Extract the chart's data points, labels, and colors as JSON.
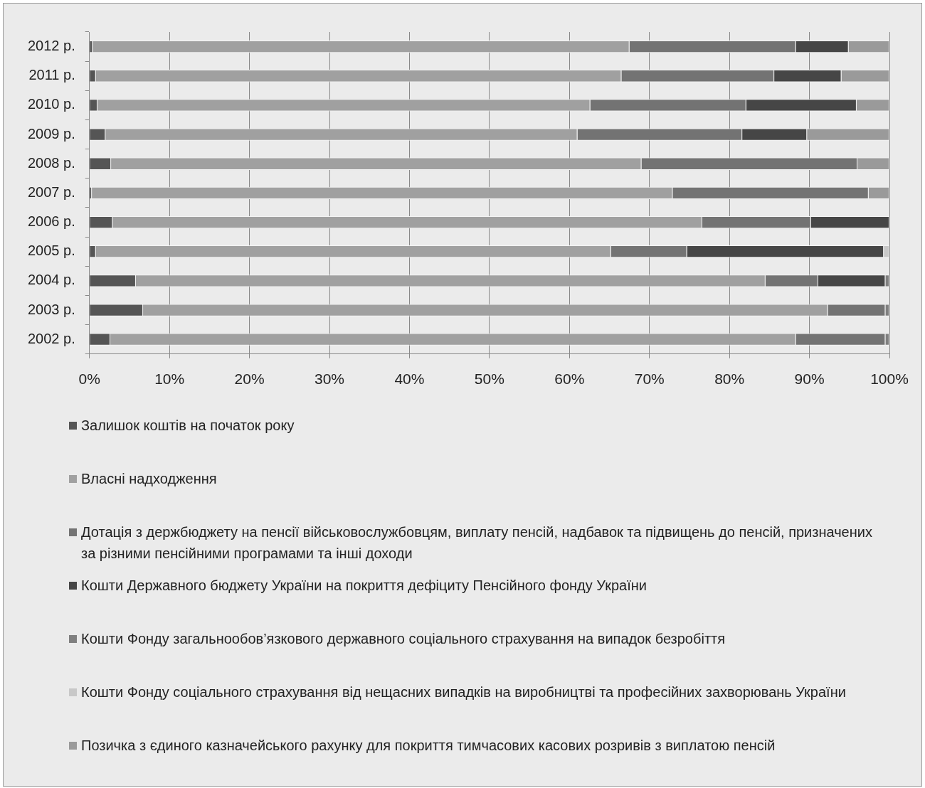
{
  "chart_data": {
    "type": "bar",
    "orientation": "horizontal",
    "stacked": true,
    "categories": [
      "2012 р.",
      "2011 р.",
      "2010 р.",
      "2009 р.",
      "2008 р.",
      "2007 р.",
      "2006 р.",
      "2005 р.",
      "2004 р.",
      "2003 р.",
      "2002 р."
    ],
    "series": [
      {
        "name": "Залишок коштів на початок року",
        "color": "#555555",
        "values": [
          0.4,
          0.8,
          1.0,
          2.0,
          2.7,
          0.3,
          2.9,
          0.8,
          5.8,
          6.7,
          2.6
        ]
      },
      {
        "name": "Власні надходження",
        "color": "#a0a0a0",
        "values": [
          67.1,
          65.7,
          61.6,
          59.0,
          66.3,
          72.6,
          73.7,
          64.4,
          78.7,
          85.6,
          85.7
        ]
      },
      {
        "name": "Дотація з держбюджету на пенсії військовослужбовцям, виплату пенсій,  надбавок та підвищень до пенсій, призначених за різними пенсійними програмами та інші доходи",
        "color": "#737373",
        "values": [
          20.8,
          19.1,
          19.5,
          20.6,
          27.0,
          24.5,
          13.6,
          9.5,
          6.6,
          7.2,
          11.2
        ]
      },
      {
        "name": "Кошти Державного бюджету України на покриття дефіциту Пенсійного фонду України",
        "color": "#464646",
        "values": [
          6.6,
          8.4,
          13.8,
          8.1,
          null,
          null,
          9.8,
          24.6,
          8.4,
          null,
          null
        ]
      },
      {
        "name": "Кошти Фонду загальнообов’язкового державного соціального страхування на випадок безробіття",
        "color": "#7f7f7f",
        "values": [
          null,
          null,
          null,
          null,
          null,
          null,
          null,
          null,
          0.5,
          0.5,
          0.5
        ]
      },
      {
        "name": "Кошти Фонду соціального страхування від нещасних випадків на виробництві та професійних захворювань України",
        "color": "#c8c8c8",
        "values": [
          null,
          null,
          null,
          null,
          null,
          null,
          null,
          0.7,
          null,
          null,
          null
        ]
      },
      {
        "name": "Позичка з єдиного казначейського рахунку для покриття тимчасових касових розривів з виплатою пенсій",
        "color": "#9a9a9a",
        "values": [
          5.1,
          6.0,
          4.1,
          10.3,
          4.0,
          2.6,
          null,
          null,
          null,
          null,
          null
        ]
      }
    ],
    "xlim": [
      0,
      100
    ],
    "xticks": [
      {
        "value": 0,
        "label": "0%"
      },
      {
        "value": 10,
        "label": "10%"
      },
      {
        "value": 20,
        "label": "20%"
      },
      {
        "value": 30,
        "label": "30%"
      },
      {
        "value": 40,
        "label": "40%"
      },
      {
        "value": 50,
        "label": "50%"
      },
      {
        "value": 60,
        "label": "60%"
      },
      {
        "value": 70,
        "label": "70%"
      },
      {
        "value": 80,
        "label": "80%"
      },
      {
        "value": 90,
        "label": "90%"
      },
      {
        "value": 100,
        "label": "100%"
      }
    ],
    "grid": "x",
    "legend": "bottom"
  }
}
